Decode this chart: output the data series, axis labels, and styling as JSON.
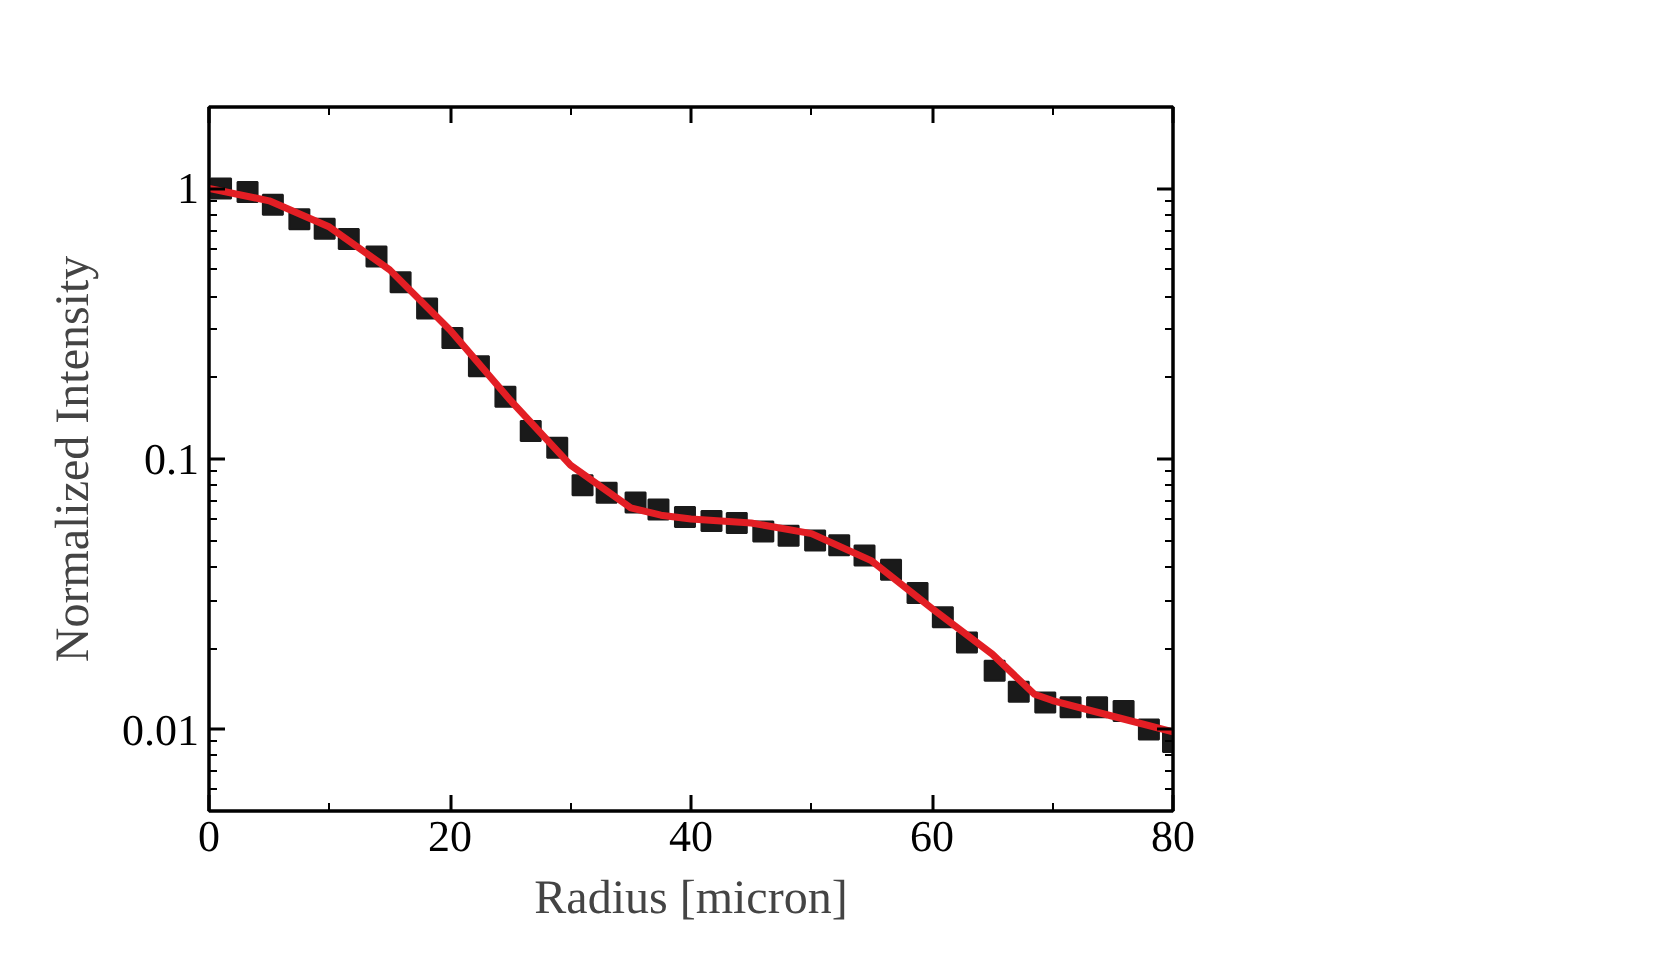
{
  "chart_data": {
    "type": "scatter",
    "xlabel": "Radius [micron]",
    "ylabel": "Normalized Intensity",
    "log": "y",
    "xlim": [
      0,
      80
    ],
    "ylim": [
      0.005,
      2
    ],
    "xticks": [
      0,
      20,
      40,
      60,
      80
    ],
    "yticks": [
      0.01,
      0.1,
      1
    ],
    "grid": false,
    "series": [
      {
        "marker": "square",
        "color": "#1a1a1a",
        "x": [
          1.0,
          3.2,
          5.3,
          7.5,
          9.6,
          11.6,
          13.9,
          15.9,
          18.1,
          20.2,
          22.4,
          24.6,
          26.7,
          28.9,
          31.0,
          33.0,
          35.4,
          37.3,
          39.5,
          41.7,
          43.8,
          46.0,
          48.1,
          50.3,
          52.3,
          54.4,
          56.6,
          58.8,
          60.9,
          62.9,
          65.2,
          67.2,
          69.4,
          71.5,
          73.7,
          75.9,
          78.0,
          80.0
        ],
        "values": [
          1.0,
          0.97,
          0.87,
          0.77,
          0.71,
          0.65,
          0.56,
          0.45,
          0.36,
          0.28,
          0.22,
          0.17,
          0.127,
          0.11,
          0.08,
          0.075,
          0.069,
          0.065,
          0.061,
          0.059,
          0.058,
          0.054,
          0.052,
          0.05,
          0.048,
          0.044,
          0.039,
          0.032,
          0.026,
          0.021,
          0.0165,
          0.0138,
          0.0126,
          0.0121,
          0.0121,
          0.0117,
          0.01,
          0.009
        ]
      },
      {
        "type": "line",
        "marker": "none",
        "line_style": "solid",
        "color": "#e31e24",
        "x": [
          0,
          5,
          10,
          15,
          20,
          25,
          30,
          35,
          37.5,
          40,
          45,
          50,
          55,
          60,
          65,
          68.5,
          70,
          75,
          80
        ],
        "values": [
          1.0,
          0.9,
          0.72,
          0.5,
          0.3,
          0.165,
          0.095,
          0.066,
          0.062,
          0.06,
          0.058,
          0.053,
          0.042,
          0.028,
          0.019,
          0.0135,
          0.0128,
          0.0112,
          0.0098
        ]
      }
    ]
  }
}
